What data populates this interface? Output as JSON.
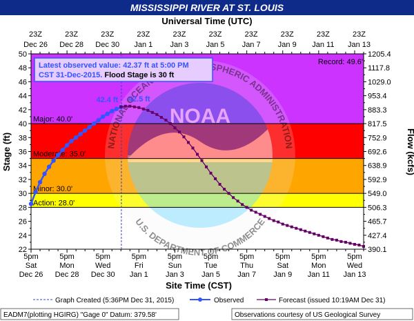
{
  "header": {
    "title": "MISSISSIPPI RIVER AT ST. LOUIS",
    "title_bg": "#0f2b8a",
    "top_axis_label": "Universal Time (UTC)"
  },
  "info_box": {
    "line1": "Latest observed value: 42.37 ft at 5:00 PM",
    "line2_blue": "CST 31-Dec-2015.",
    "line2_black": " Flood Stage is 30 ft"
  },
  "record_label": "Record: 49.6'",
  "annotations": {
    "observed_peak": "42.4 ft",
    "forecast_peak": "42.5 ft"
  },
  "thresholds": [
    {
      "label": "Major: 40.0'",
      "value": 40.0
    },
    {
      "label": "Moderate: 35.0'",
      "value": 35.0
    },
    {
      "label": "Minor: 30.0'",
      "value": 30.0
    },
    {
      "label": "Action: 28.0'",
      "value": 28.0
    }
  ],
  "bands": [
    {
      "from": 22,
      "to": 28,
      "color": "#ffffff"
    },
    {
      "from": 28,
      "to": 30,
      "color": "#ffff00"
    },
    {
      "from": 30,
      "to": 35,
      "color": "#ffa500"
    },
    {
      "from": 35,
      "to": 40,
      "color": "#ff0000"
    },
    {
      "from": 40,
      "to": 50,
      "color": "#cc33ff"
    }
  ],
  "footer": {
    "graph_created": "Graph Created (5:36PM Dec 31, 2015)",
    "observed": "Observed",
    "forecast": "Forecast (issued 10:19AM Dec 31)",
    "datum": "EADM7(plotting HGIRG) \"Gage 0\" Datum: 379.58'",
    "courtesy": "Observations courtesy of US Geological Survey"
  },
  "watermark": {
    "ring_text_top": "NATIONAL OCEANIC AND ATMOSPHERIC ADMINISTRATION",
    "ring_text_bottom": "U.S. DEPARTMENT OF COMMERCE",
    "center_text": "NOAA"
  },
  "chart_data": {
    "type": "line",
    "title": "MISSISSIPPI RIVER AT ST. LOUIS",
    "xlabel": "Site Time (CST)",
    "ylabel": "Stage (ft)",
    "y2label": "Flow (kcfs)",
    "top_xlabel": "Universal Time (UTC)",
    "ylim": [
      22,
      50
    ],
    "xlim": [
      "Dec 26 5pm",
      "Jan 14 5am"
    ],
    "yticks": [
      22,
      24,
      26,
      28,
      30,
      32,
      34,
      36,
      38,
      40,
      42,
      44,
      46,
      48,
      50
    ],
    "y2ticks": [
      "390.1",
      "427.4",
      "465.7",
      "506.3",
      "549.0",
      "592.9",
      "638.9",
      "692.6",
      "752.9",
      "817.5",
      "883.3",
      "953.4",
      "1029.0",
      "1117.8",
      "1205.4"
    ],
    "bottom_ticks": [
      {
        "l1": "5pm",
        "l2": "Sat",
        "l3": "Dec 26"
      },
      {
        "l1": "5pm",
        "l2": "Mon",
        "l3": "Dec 28"
      },
      {
        "l1": "5pm",
        "l2": "Wed",
        "l3": "Dec 30"
      },
      {
        "l1": "5pm",
        "l2": "Fri",
        "l3": "Jan 1"
      },
      {
        "l1": "5pm",
        "l2": "Sun",
        "l3": "Jan 3"
      },
      {
        "l1": "5pm",
        "l2": "Tue",
        "l3": "Jan 5"
      },
      {
        "l1": "5pm",
        "l2": "Thu",
        "l3": "Jan 7"
      },
      {
        "l1": "5pm",
        "l2": "Sat",
        "l3": "Jan 9"
      },
      {
        "l1": "5pm",
        "l2": "Mon",
        "l3": "Jan 11"
      },
      {
        "l1": "5pm",
        "l2": "Wed",
        "l3": "Jan 13"
      }
    ],
    "top_ticks": [
      {
        "l1": "23Z",
        "l2": "Dec 26"
      },
      {
        "l1": "23Z",
        "l2": "Dec 28"
      },
      {
        "l1": "23Z",
        "l2": "Dec 30"
      },
      {
        "l1": "23Z",
        "l2": "Jan 1"
      },
      {
        "l1": "23Z",
        "l2": "Jan 3"
      },
      {
        "l1": "23Z",
        "l2": "Jan 5"
      },
      {
        "l1": "23Z",
        "l2": "Jan 7"
      },
      {
        "l1": "23Z",
        "l2": "Jan 9"
      },
      {
        "l1": "23Z",
        "l2": "Jan 11"
      },
      {
        "l1": "23Z",
        "l2": "Jan 13"
      }
    ],
    "x_unit": "days since 5pm Sat Dec 26",
    "graph_created_x": 5.025,
    "series": [
      {
        "name": "Observed",
        "color": "#3355ff",
        "points": [
          [
            0,
            28.5
          ],
          [
            0.25,
            30.2
          ],
          [
            0.5,
            31.6
          ],
          [
            0.75,
            32.8
          ],
          [
            1.0,
            33.8
          ],
          [
            1.25,
            34.7
          ],
          [
            1.5,
            35.5
          ],
          [
            1.75,
            36.2
          ],
          [
            2.0,
            36.9
          ],
          [
            2.25,
            37.5
          ],
          [
            2.5,
            38.0
          ],
          [
            2.75,
            38.5
          ],
          [
            3.0,
            39.0
          ],
          [
            3.25,
            39.5
          ],
          [
            3.5,
            40.0
          ],
          [
            3.75,
            40.5
          ],
          [
            4.0,
            41.0
          ],
          [
            4.25,
            41.4
          ],
          [
            4.5,
            41.8
          ],
          [
            4.75,
            42.1
          ],
          [
            5.0,
            42.37
          ]
        ]
      },
      {
        "name": "Forecast (issued 10:19AM Dec 31)",
        "color": "#660066",
        "points": [
          [
            5.0,
            42.4
          ],
          [
            5.25,
            42.5
          ],
          [
            5.5,
            42.5
          ],
          [
            5.75,
            42.4
          ],
          [
            6.0,
            42.3
          ],
          [
            6.25,
            42.1
          ],
          [
            6.5,
            41.9
          ],
          [
            6.75,
            41.6
          ],
          [
            7.0,
            41.3
          ],
          [
            7.25,
            40.9
          ],
          [
            7.5,
            40.5
          ],
          [
            7.75,
            40.0
          ],
          [
            8.0,
            39.4
          ],
          [
            8.25,
            38.8
          ],
          [
            8.5,
            38.1
          ],
          [
            8.75,
            37.3
          ],
          [
            9.0,
            36.5
          ],
          [
            9.25,
            35.6
          ],
          [
            9.5,
            34.7
          ],
          [
            9.75,
            33.8
          ],
          [
            10.0,
            32.9
          ],
          [
            10.25,
            32.1
          ],
          [
            10.5,
            31.3
          ],
          [
            10.75,
            30.6
          ],
          [
            11.0,
            30.0
          ],
          [
            11.25,
            29.4
          ],
          [
            11.5,
            28.9
          ],
          [
            11.75,
            28.4
          ],
          [
            12.0,
            28.0
          ],
          [
            12.25,
            27.6
          ],
          [
            12.5,
            27.3
          ],
          [
            12.75,
            27.0
          ],
          [
            13.0,
            26.7
          ],
          [
            13.25,
            26.4
          ],
          [
            13.5,
            26.1
          ],
          [
            13.75,
            25.9
          ],
          [
            14.0,
            25.6
          ],
          [
            14.25,
            25.4
          ],
          [
            14.5,
            25.2
          ],
          [
            14.75,
            25.0
          ],
          [
            15.0,
            24.8
          ],
          [
            15.25,
            24.6
          ],
          [
            15.5,
            24.4
          ],
          [
            15.75,
            24.2
          ],
          [
            16.0,
            24.0
          ],
          [
            16.25,
            23.8
          ],
          [
            16.5,
            23.6
          ],
          [
            16.75,
            23.4
          ],
          [
            17.0,
            23.3
          ],
          [
            17.25,
            23.1
          ],
          [
            17.5,
            23.0
          ],
          [
            17.75,
            22.85
          ],
          [
            18.0,
            22.7
          ],
          [
            18.25,
            22.6
          ],
          [
            18.5,
            22.4
          ]
        ]
      }
    ]
  }
}
